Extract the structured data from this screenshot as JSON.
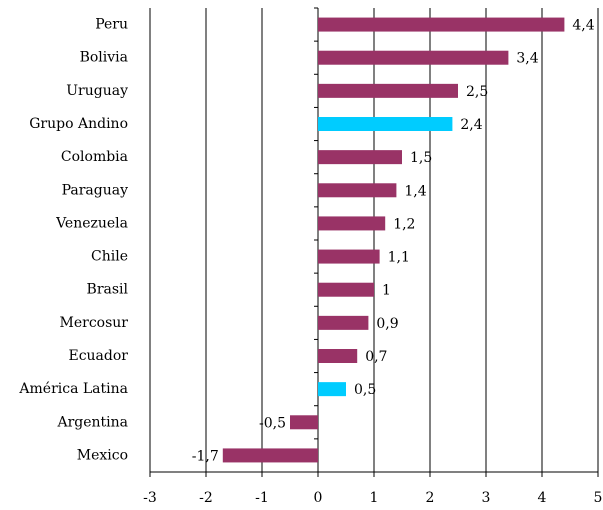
{
  "chart_data": {
    "type": "bar",
    "orientation": "horizontal",
    "categories": [
      "Peru",
      "Bolivia",
      "Uruguay",
      "Grupo Andino",
      "Colombia",
      "Paraguay",
      "Venezuela",
      "Chile",
      "Brasil",
      "Mercosur",
      "Ecuador",
      "América Latina",
      "Argentina",
      "Mexico"
    ],
    "values": [
      4.4,
      3.4,
      2.5,
      2.4,
      1.5,
      1.4,
      1.2,
      1.1,
      1,
      0.9,
      0.7,
      0.5,
      -0.5,
      -1.7
    ],
    "value_labels": [
      "4,4",
      "3,4",
      "2,5",
      "2,4",
      "1,5",
      "1,4",
      "1,2",
      "1,1",
      "1",
      "0,9",
      "0,7",
      "0,5",
      "-0,5",
      "-1,7"
    ],
    "colors": [
      "#993366",
      "#993366",
      "#993366",
      "#00ccff",
      "#993366",
      "#993366",
      "#993366",
      "#993366",
      "#993366",
      "#993366",
      "#993366",
      "#00ccff",
      "#993366",
      "#993366"
    ],
    "xlim": [
      -3,
      5
    ],
    "xticks": [
      -3,
      -2,
      -1,
      0,
      1,
      2,
      3,
      4,
      5
    ],
    "grid": true
  }
}
